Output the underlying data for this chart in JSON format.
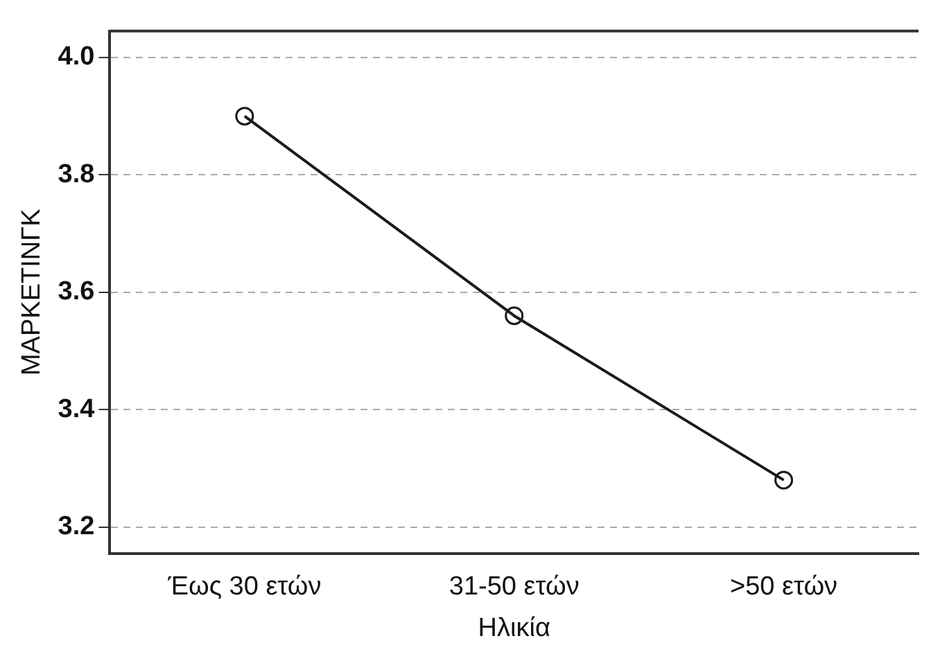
{
  "chart_data": {
    "type": "line",
    "xlabel": "Ηλικία",
    "ylabel": "ΜΑΡΚΕΤΙΝΓΚ",
    "categories": [
      "Έως 30 ετών",
      "31-50 ετών",
      ">50 ετών"
    ],
    "series": [
      {
        "color": "#1a1a1a",
        "values": [
          3.9,
          3.56,
          3.28
        ]
      }
    ],
    "ylim": [
      3.155,
      4.045
    ],
    "yticks": [
      3.2,
      3.4,
      3.6,
      3.8,
      {
        "value": 4,
        "label": "4.0"
      }
    ],
    "grid": "y",
    "legend": false,
    "marker": "circle",
    "line_style": "solid"
  }
}
